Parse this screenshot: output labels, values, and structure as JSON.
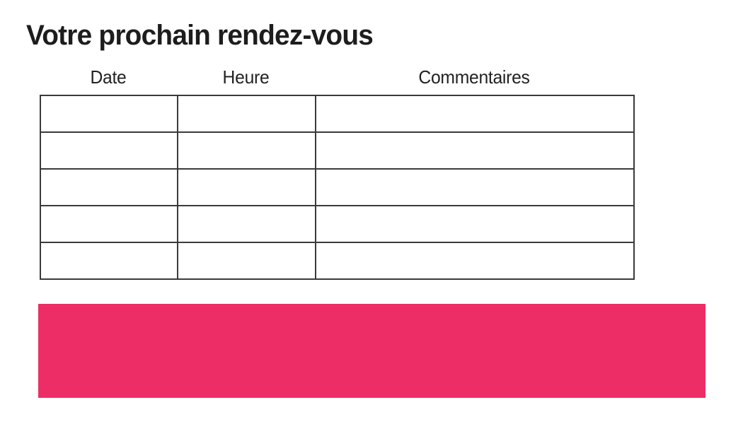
{
  "page": {
    "title": "Votre prochain rendez-vous"
  },
  "appointments_table": {
    "headers": [
      "Date",
      "Heure",
      "Commentaires"
    ],
    "rows": [
      [
        "",
        "",
        ""
      ],
      [
        "",
        "",
        ""
      ],
      [
        "",
        "",
        ""
      ],
      [
        "",
        "",
        ""
      ],
      [
        "",
        "",
        ""
      ]
    ]
  },
  "banner": {
    "color": "#ED2D65"
  },
  "colors": {
    "accent_pink": "#ED2D65",
    "table_border": "#3a3a3a",
    "title_text": "#1d1d1b",
    "header_text": "#222222",
    "background": "#ffffff"
  }
}
